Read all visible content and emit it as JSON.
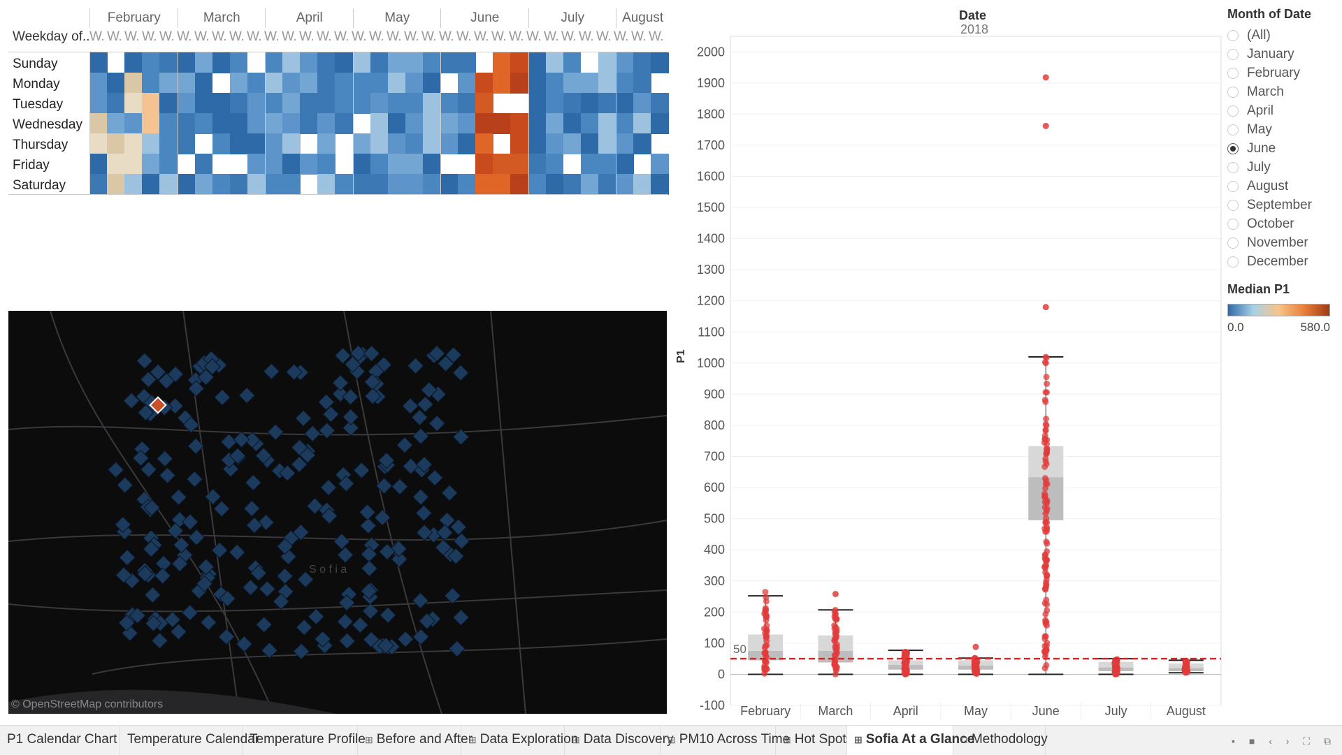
{
  "calendar": {
    "weekday_title": "Weekday of..",
    "week_marker": "W.",
    "months": [
      "February",
      "March",
      "April",
      "May",
      "June",
      "July",
      "August"
    ],
    "days": [
      "Sunday",
      "Monday",
      "Tuesday",
      "Wednesday",
      "Thursday",
      "Friday",
      "Saturday"
    ]
  },
  "chart_data": {
    "type": "box",
    "title": "Date",
    "subtitle": "2018",
    "ylabel": "P1",
    "categories": [
      "February",
      "March",
      "April",
      "May",
      "June",
      "July",
      "August"
    ],
    "ylim": [
      -100,
      2050
    ],
    "yticks": [
      -100,
      0,
      100,
      200,
      300,
      400,
      500,
      600,
      700,
      800,
      900,
      1000,
      1100,
      1200,
      1300,
      1400,
      1500,
      1600,
      1700,
      1800,
      1900,
      2000
    ],
    "reference_line": {
      "value": 50,
      "label": "50",
      "color": "#d62728"
    },
    "boxes": [
      {
        "month": "February",
        "min": 0,
        "q1": 45,
        "median": 75,
        "q3": 128,
        "max": 252,
        "points_max": 270,
        "outliers": []
      },
      {
        "month": "March",
        "min": 0,
        "q1": 38,
        "median": 75,
        "q3": 125,
        "max": 207,
        "points_max": 207,
        "outliers": [
          258
        ]
      },
      {
        "month": "April",
        "min": 0,
        "q1": 15,
        "median": 30,
        "q3": 45,
        "max": 77,
        "points_max": 77,
        "outliers": []
      },
      {
        "month": "May",
        "min": 0,
        "q1": 15,
        "median": 28,
        "q3": 45,
        "max": 52,
        "points_max": 52,
        "outliers": [
          88
        ]
      },
      {
        "month": "June",
        "min": 0,
        "q1": 495,
        "median": 633,
        "q3": 733,
        "max": 1020,
        "points_max": 1020,
        "outliers": [
          1180,
          1762,
          1918
        ]
      },
      {
        "month": "July",
        "min": 0,
        "q1": 10,
        "median": 22,
        "q3": 40,
        "max": 50,
        "points_max": 50,
        "outliers": []
      },
      {
        "month": "August",
        "min": 5,
        "q1": 10,
        "median": 20,
        "q3": 35,
        "max": 45,
        "points_max": 45,
        "outliers": []
      }
    ]
  },
  "legend": {
    "title": "Month of Date",
    "options": [
      "(All)",
      "January",
      "February",
      "March",
      "April",
      "May",
      "June",
      "July",
      "August",
      "September",
      "October",
      "November",
      "December"
    ],
    "selected": "June",
    "median_title": "Median P1",
    "median_min": "0.0",
    "median_max": "580.0",
    "gradient_colors": [
      "#2f6aa8",
      "#a8d0e6",
      "#f6c48a",
      "#e8803a",
      "#9e3a14"
    ]
  },
  "map": {
    "credit": "© OpenStreetMap contributors",
    "city_label": "S o f i a",
    "highlight_color": "#c8502a",
    "sensor_color": "#1b3a5c"
  },
  "tabs": {
    "items": [
      {
        "label": "P1 Calendar Chart",
        "icon": ""
      },
      {
        "label": "Temperature Calendar",
        "icon": ""
      },
      {
        "label": "Temperature Profile",
        "icon": ""
      },
      {
        "label": "Before and After",
        "icon": "⊞"
      },
      {
        "label": "Data Exploration",
        "icon": "⊞"
      },
      {
        "label": "Data Discovery",
        "icon": "⊞"
      },
      {
        "label": "PM10 Across Time",
        "icon": "⊞"
      },
      {
        "label": "Hot Spots",
        "icon": "⊞"
      },
      {
        "label": "Sofia At a Glance",
        "icon": "⊞"
      },
      {
        "label": "Methodology",
        "icon": "⊓"
      }
    ],
    "active": "Sofia At a Glance",
    "controls": "▪ ■ ‹ › ⛶ ⧉"
  }
}
